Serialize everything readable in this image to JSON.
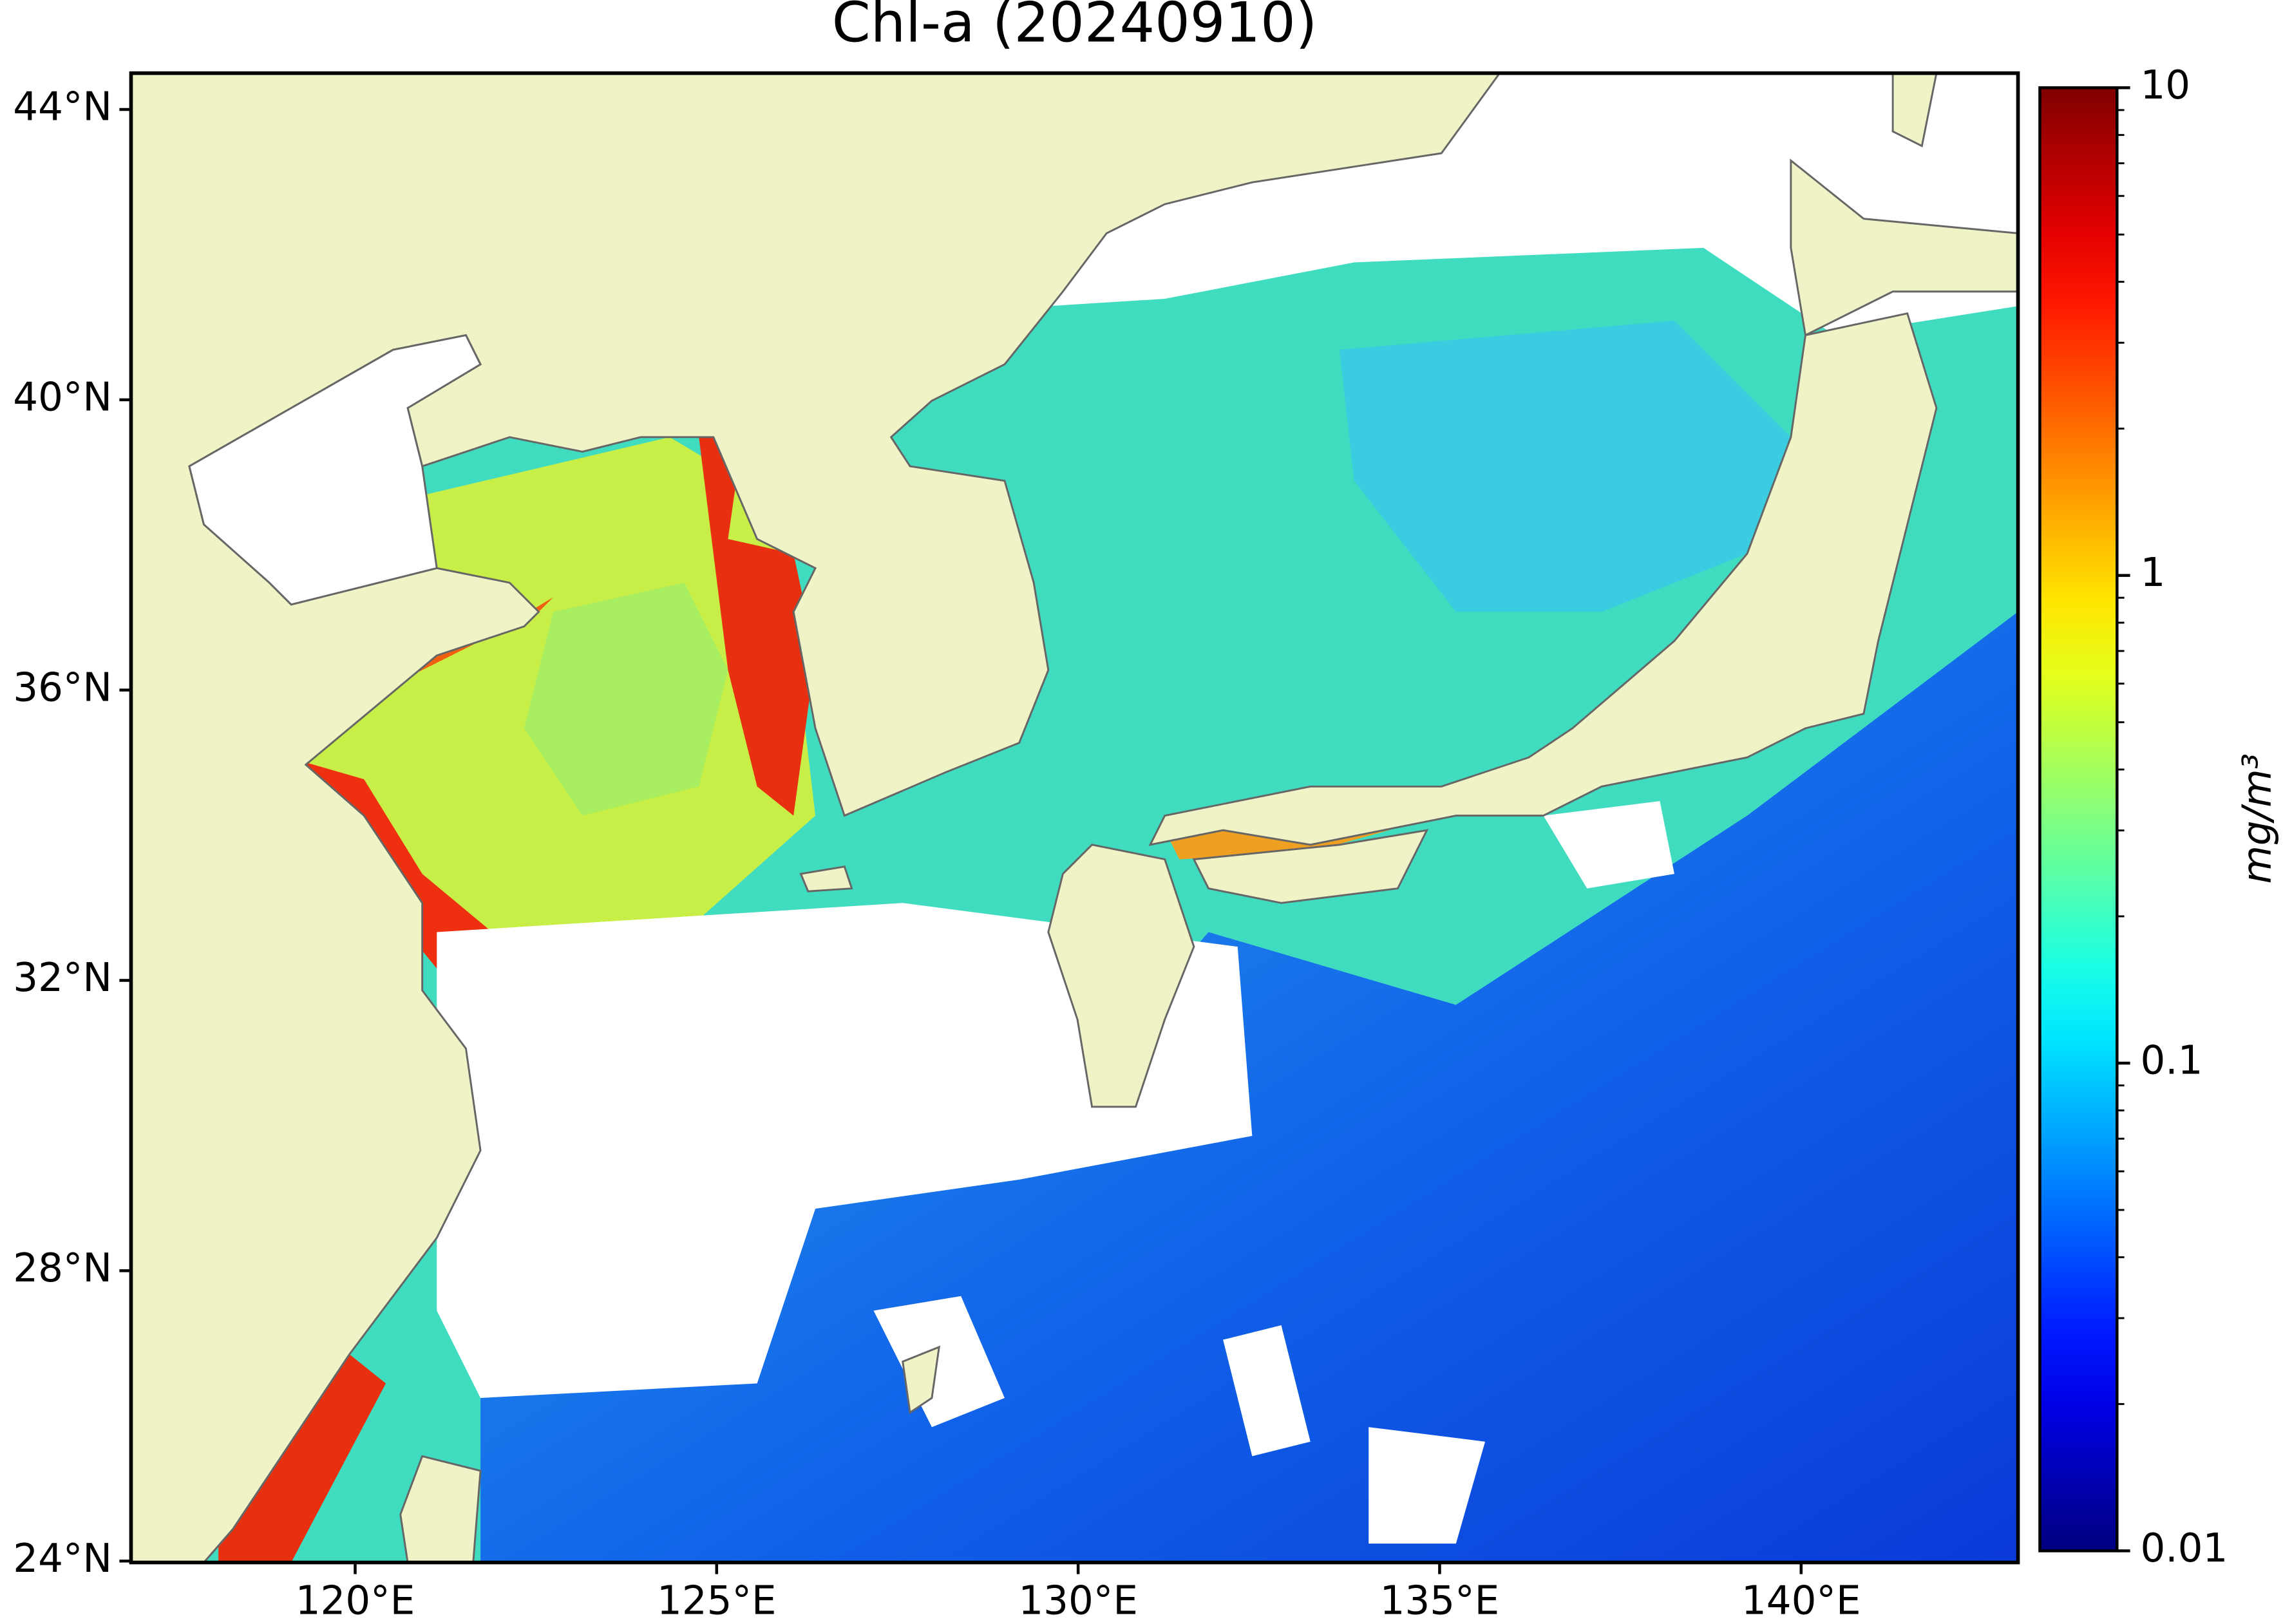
{
  "title": "Chl-a (20240910)",
  "map": {
    "xlim": [
      116.9,
      143.0
    ],
    "ylim": [
      23.98,
      44.5
    ],
    "xticks": [
      {
        "value": 120,
        "label": "120°E"
      },
      {
        "value": 125,
        "label": "125°E"
      },
      {
        "value": 130,
        "label": "130°E"
      },
      {
        "value": 135,
        "label": "135°E"
      },
      {
        "value": 140,
        "label": "140°E"
      }
    ],
    "yticks": [
      {
        "value": 24,
        "label": "24°N"
      },
      {
        "value": 28,
        "label": "28°N"
      },
      {
        "value": 32,
        "label": "32°N"
      },
      {
        "value": 36,
        "label": "36°N"
      },
      {
        "value": 40,
        "label": "40°N"
      },
      {
        "value": 44,
        "label": "44°N"
      }
    ]
  },
  "colorbar": {
    "label": "mg/m³",
    "colormap": "jet",
    "log_scale": true,
    "lim": [
      0.01,
      10
    ],
    "ticks": [
      0.01,
      0.1,
      1,
      10
    ]
  }
}
